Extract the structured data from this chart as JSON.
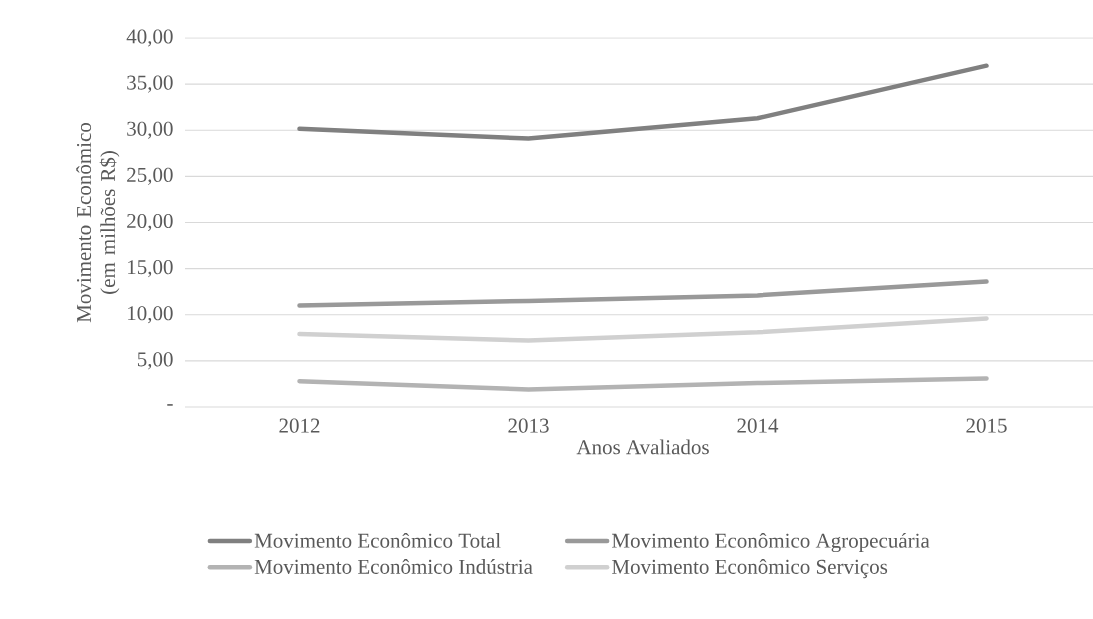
{
  "chart_data": {
    "type": "line",
    "xlabel": "Anos Avaliados",
    "ylabel": "Movimento Econômico (em milhões R$)",
    "categories": [
      "2012",
      "2013",
      "2014",
      "2015"
    ],
    "ylim": [
      0,
      40
    ],
    "yticks": [
      {
        "value": 0,
        "label": "-"
      },
      {
        "value": 5,
        "label": "5,00"
      },
      {
        "value": 10,
        "label": "10,00"
      },
      {
        "value": 15,
        "label": "15,00"
      },
      {
        "value": 20,
        "label": "20,00"
      },
      {
        "value": 25,
        "label": "25,00"
      },
      {
        "value": 30,
        "label": "30,00"
      },
      {
        "value": 35,
        "label": "35,00"
      },
      {
        "value": 40,
        "label": "40,00"
      }
    ],
    "grid": "y",
    "legend": "bottom",
    "marker": "none",
    "line_style": "solid",
    "series": [
      {
        "name": "Movimento Econômico Total",
        "color": "#808080",
        "values": [
          30.15,
          29.1,
          31.3,
          37.0
        ]
      },
      {
        "name": "Movimento Econômico Agropecuária",
        "color": "#999999",
        "values": [
          11.0,
          11.5,
          12.1,
          13.6
        ]
      },
      {
        "name": "Movimento Econômico Indústria",
        "color": "#b3b3b3",
        "values": [
          2.8,
          1.9,
          2.6,
          3.1
        ]
      },
      {
        "name": "Movimento Econômico Serviços",
        "color": "#d0d0d0",
        "values": [
          7.9,
          7.2,
          8.1,
          9.6
        ]
      }
    ]
  }
}
